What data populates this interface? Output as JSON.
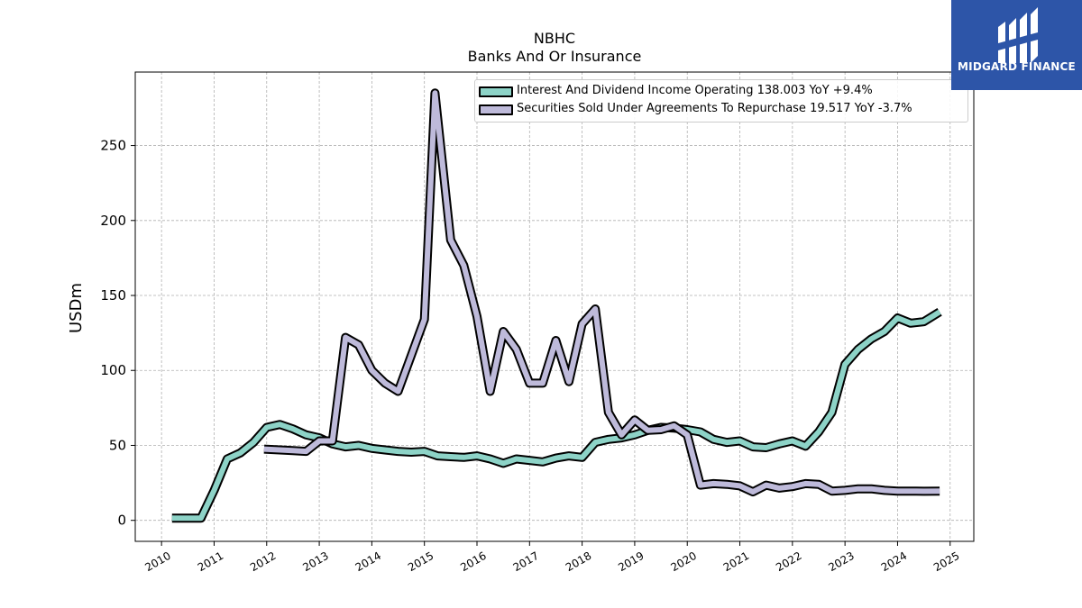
{
  "header": {
    "title": "NBHC",
    "subtitle": "Banks And Or Insurance"
  },
  "logo": {
    "text": "MIDGARD FINANCE",
    "background": "#2d55a8"
  },
  "legend": {
    "items": [
      {
        "label": "Interest And Dividend Income Operating  138.003 YoY +9.4%",
        "color": "#8dd3c7"
      },
      {
        "label": "Securities Sold Under Agreements To Repurchase  19.517 YoY -3.7%",
        "color": "#bebada"
      }
    ]
  },
  "chart_data": {
    "type": "line",
    "title": "NBHC",
    "subtitle": "Banks And Or Insurance",
    "xlabel": "",
    "ylabel": "USDm",
    "xlim": [
      2009.5,
      2025.45
    ],
    "ylim": [
      -14,
      299
    ],
    "x_ticks": [
      2010,
      2011,
      2012,
      2013,
      2014,
      2015,
      2016,
      2017,
      2018,
      2019,
      2020,
      2021,
      2022,
      2023,
      2024,
      2025
    ],
    "y_ticks": [
      0,
      50,
      100,
      150,
      200,
      250
    ],
    "grid": true,
    "legend_position": "top-right",
    "series": [
      {
        "name": "Interest And Dividend Income Operating  138.003 YoY +9.4%",
        "color": "#8dd3c7",
        "points": [
          [
            2010.2,
            1.5
          ],
          [
            2010.5,
            1.5
          ],
          [
            2010.75,
            1.5
          ],
          [
            2011.0,
            20
          ],
          [
            2011.25,
            41
          ],
          [
            2011.5,
            45
          ],
          [
            2011.75,
            52
          ],
          [
            2012.0,
            62
          ],
          [
            2012.25,
            64
          ],
          [
            2012.5,
            61
          ],
          [
            2012.75,
            57
          ],
          [
            2013.0,
            55
          ],
          [
            2013.25,
            51
          ],
          [
            2013.5,
            49
          ],
          [
            2013.75,
            50
          ],
          [
            2014.0,
            48
          ],
          [
            2014.25,
            47
          ],
          [
            2014.5,
            46
          ],
          [
            2014.75,
            45.5
          ],
          [
            2015.0,
            46
          ],
          [
            2015.25,
            43
          ],
          [
            2015.5,
            42.5
          ],
          [
            2015.75,
            42
          ],
          [
            2016.0,
            43
          ],
          [
            2016.25,
            41
          ],
          [
            2016.5,
            38
          ],
          [
            2016.75,
            41
          ],
          [
            2017.0,
            40
          ],
          [
            2017.25,
            39
          ],
          [
            2017.5,
            41.5
          ],
          [
            2017.75,
            43
          ],
          [
            2018.0,
            42
          ],
          [
            2018.25,
            52
          ],
          [
            2018.5,
            54
          ],
          [
            2018.75,
            55
          ],
          [
            2019.0,
            57
          ],
          [
            2019.25,
            60
          ],
          [
            2019.5,
            62
          ],
          [
            2019.75,
            61.5
          ],
          [
            2020.0,
            60.5
          ],
          [
            2020.25,
            59
          ],
          [
            2020.5,
            54
          ],
          [
            2020.75,
            52
          ],
          [
            2021.0,
            53
          ],
          [
            2021.25,
            49
          ],
          [
            2021.5,
            48.5
          ],
          [
            2021.75,
            51
          ],
          [
            2022.0,
            53
          ],
          [
            2022.25,
            49.5
          ],
          [
            2022.5,
            59
          ],
          [
            2022.75,
            72
          ],
          [
            2023.0,
            104
          ],
          [
            2023.25,
            114
          ],
          [
            2023.5,
            121
          ],
          [
            2023.75,
            126
          ],
          [
            2024.0,
            135
          ],
          [
            2024.25,
            131.5
          ],
          [
            2024.5,
            132.5
          ],
          [
            2024.8,
            139
          ]
        ]
      },
      {
        "name": "Securities Sold Under Agreements To Repurchase  19.517 YoY -3.7%",
        "color": "#bebada",
        "points": [
          [
            2011.95,
            47.5
          ],
          [
            2012.25,
            47
          ],
          [
            2012.5,
            46.5
          ],
          [
            2012.75,
            46
          ],
          [
            2013.0,
            53
          ],
          [
            2013.25,
            53
          ],
          [
            2013.5,
            122
          ],
          [
            2013.75,
            117
          ],
          [
            2014.0,
            100
          ],
          [
            2014.25,
            91.5
          ],
          [
            2014.5,
            86
          ],
          [
            2014.75,
            110
          ],
          [
            2015.0,
            134
          ],
          [
            2015.2,
            285
          ],
          [
            2015.5,
            187
          ],
          [
            2015.75,
            170
          ],
          [
            2016.0,
            136
          ],
          [
            2016.25,
            86
          ],
          [
            2016.5,
            126
          ],
          [
            2016.75,
            114
          ],
          [
            2017.0,
            91.5
          ],
          [
            2017.25,
            91.5
          ],
          [
            2017.5,
            120
          ],
          [
            2017.75,
            92.5
          ],
          [
            2018.0,
            131
          ],
          [
            2018.25,
            141
          ],
          [
            2018.5,
            72
          ],
          [
            2018.75,
            57
          ],
          [
            2019.0,
            67
          ],
          [
            2019.25,
            60
          ],
          [
            2019.5,
            60.5
          ],
          [
            2019.75,
            63
          ],
          [
            2020.0,
            57
          ],
          [
            2020.25,
            23.5
          ],
          [
            2020.5,
            24.5
          ],
          [
            2020.75,
            24
          ],
          [
            2021.0,
            23
          ],
          [
            2021.25,
            19
          ],
          [
            2021.5,
            23.5
          ],
          [
            2021.75,
            21.5
          ],
          [
            2022.0,
            22.5
          ],
          [
            2022.25,
            24.5
          ],
          [
            2022.5,
            24
          ],
          [
            2022.75,
            19.5
          ],
          [
            2023.0,
            20
          ],
          [
            2023.25,
            21
          ],
          [
            2023.5,
            21
          ],
          [
            2023.75,
            20
          ],
          [
            2024.0,
            19.5
          ],
          [
            2024.25,
            19.5
          ],
          [
            2024.5,
            19.4
          ],
          [
            2024.8,
            19.5
          ]
        ]
      }
    ]
  }
}
